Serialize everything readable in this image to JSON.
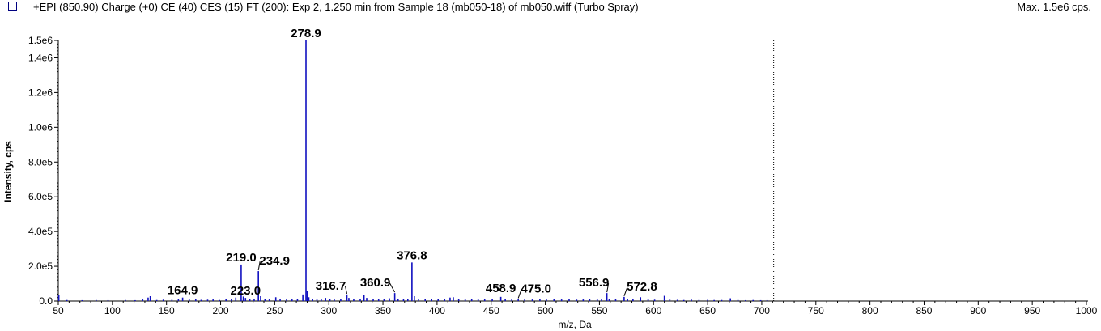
{
  "header": {
    "title": "+EPI (850.90) Charge (+0) CE (40) CES (15) FT (200): Exp 2, 1.250 min from Sample 18 (mb050-18) of mb050.wiff (Turbo Spray)",
    "max_label": "Max. 1.5e6 cps."
  },
  "colors": {
    "series": "#1010c0",
    "swatch": "#1a1aff",
    "axis": "#000000"
  },
  "chart_data": {
    "type": "bar",
    "xlabel": "m/z, Da",
    "ylabel": "Intensity, cps",
    "xlim": [
      50,
      1000
    ],
    "ylim": [
      0,
      1500000
    ],
    "x_ticks": [
      50,
      100,
      150,
      200,
      250,
      300,
      350,
      400,
      450,
      500,
      550,
      600,
      650,
      700,
      750,
      800,
      850,
      900,
      950,
      1000
    ],
    "x_tick_labels": [
      "50",
      "100",
      "150",
      "200",
      "250",
      "300",
      "350",
      "400",
      "450",
      "500",
      "550",
      "600",
      "650",
      "700",
      "750",
      "800",
      "850",
      "900",
      "950",
      "1000"
    ],
    "y_ticks": [
      0,
      200000,
      400000,
      600000,
      800000,
      1000000,
      1200000,
      1400000,
      1500000
    ],
    "y_tick_labels": [
      "0.0",
      "2.0e5",
      "4.0e5",
      "6.0e5",
      "8.0e5",
      "1.0e6",
      "1.2e6",
      "1.4e6",
      "1.5e6"
    ],
    "marker_line_x": 711,
    "peaks": [
      {
        "x": 50.5,
        "y": 35000
      },
      {
        "x": 58,
        "y": 6000
      },
      {
        "x": 72,
        "y": 5000
      },
      {
        "x": 85,
        "y": 6000
      },
      {
        "x": 96,
        "y": 5000
      },
      {
        "x": 112,
        "y": 6000
      },
      {
        "x": 121,
        "y": 5000
      },
      {
        "x": 128,
        "y": 9000
      },
      {
        "x": 133,
        "y": 20000
      },
      {
        "x": 135,
        "y": 28000
      },
      {
        "x": 141,
        "y": 6000
      },
      {
        "x": 147,
        "y": 8000
      },
      {
        "x": 155,
        "y": 7000
      },
      {
        "x": 161,
        "y": 14000
      },
      {
        "x": 164.9,
        "y": 20000
      },
      {
        "x": 171,
        "y": 9000
      },
      {
        "x": 177,
        "y": 12000
      },
      {
        "x": 182,
        "y": 7000
      },
      {
        "x": 188,
        "y": 8000
      },
      {
        "x": 193,
        "y": 9000
      },
      {
        "x": 199,
        "y": 6000
      },
      {
        "x": 205,
        "y": 10000
      },
      {
        "x": 210,
        "y": 14000
      },
      {
        "x": 214,
        "y": 20000
      },
      {
        "x": 219.0,
        "y": 210000
      },
      {
        "x": 221,
        "y": 26000
      },
      {
        "x": 223.0,
        "y": 18000
      },
      {
        "x": 227,
        "y": 12000
      },
      {
        "x": 231,
        "y": 14000
      },
      {
        "x": 234.9,
        "y": 172000
      },
      {
        "x": 237,
        "y": 28000
      },
      {
        "x": 241,
        "y": 10000
      },
      {
        "x": 245,
        "y": 9000
      },
      {
        "x": 251,
        "y": 22000
      },
      {
        "x": 255,
        "y": 10000
      },
      {
        "x": 261,
        "y": 12000
      },
      {
        "x": 266,
        "y": 9000
      },
      {
        "x": 271,
        "y": 10000
      },
      {
        "x": 276,
        "y": 38000
      },
      {
        "x": 278.9,
        "y": 1500000
      },
      {
        "x": 280,
        "y": 60000
      },
      {
        "x": 281.5,
        "y": 22000
      },
      {
        "x": 285,
        "y": 12000
      },
      {
        "x": 289,
        "y": 9000
      },
      {
        "x": 293,
        "y": 14000
      },
      {
        "x": 297,
        "y": 18000
      },
      {
        "x": 301,
        "y": 12000
      },
      {
        "x": 305,
        "y": 10000
      },
      {
        "x": 311,
        "y": 12000
      },
      {
        "x": 316.7,
        "y": 38000
      },
      {
        "x": 318.5,
        "y": 18000
      },
      {
        "x": 323,
        "y": 10000
      },
      {
        "x": 329,
        "y": 14000
      },
      {
        "x": 332.5,
        "y": 34000
      },
      {
        "x": 335,
        "y": 18000
      },
      {
        "x": 341,
        "y": 12000
      },
      {
        "x": 346,
        "y": 10000
      },
      {
        "x": 351,
        "y": 12000
      },
      {
        "x": 356,
        "y": 16000
      },
      {
        "x": 360.9,
        "y": 46000
      },
      {
        "x": 364,
        "y": 14000
      },
      {
        "x": 369,
        "y": 12000
      },
      {
        "x": 373,
        "y": 14000
      },
      {
        "x": 376.8,
        "y": 222000
      },
      {
        "x": 379,
        "y": 28000
      },
      {
        "x": 383,
        "y": 12000
      },
      {
        "x": 389,
        "y": 10000
      },
      {
        "x": 395,
        "y": 12000
      },
      {
        "x": 401,
        "y": 10000
      },
      {
        "x": 407,
        "y": 14000
      },
      {
        "x": 412,
        "y": 20000
      },
      {
        "x": 415,
        "y": 22000
      },
      {
        "x": 420,
        "y": 12000
      },
      {
        "x": 426,
        "y": 10000
      },
      {
        "x": 432,
        "y": 12000
      },
      {
        "x": 438,
        "y": 9000
      },
      {
        "x": 444,
        "y": 10000
      },
      {
        "x": 451,
        "y": 12000
      },
      {
        "x": 458.9,
        "y": 24000
      },
      {
        "x": 463,
        "y": 10000
      },
      {
        "x": 469,
        "y": 9000
      },
      {
        "x": 475.0,
        "y": 12000
      },
      {
        "x": 481,
        "y": 10000
      },
      {
        "x": 488,
        "y": 9000
      },
      {
        "x": 495,
        "y": 10000
      },
      {
        "x": 501,
        "y": 9000
      },
      {
        "x": 508,
        "y": 10000
      },
      {
        "x": 515,
        "y": 9000
      },
      {
        "x": 522,
        "y": 10000
      },
      {
        "x": 529,
        "y": 8000
      },
      {
        "x": 535,
        "y": 9000
      },
      {
        "x": 541,
        "y": 10000
      },
      {
        "x": 548,
        "y": 9000
      },
      {
        "x": 552,
        "y": 14000
      },
      {
        "x": 556.9,
        "y": 46000
      },
      {
        "x": 559,
        "y": 14000
      },
      {
        "x": 565,
        "y": 10000
      },
      {
        "x": 572.8,
        "y": 24000
      },
      {
        "x": 576,
        "y": 9000
      },
      {
        "x": 581,
        "y": 10000
      },
      {
        "x": 588,
        "y": 22000
      },
      {
        "x": 595,
        "y": 10000
      },
      {
        "x": 601,
        "y": 8000
      },
      {
        "x": 610,
        "y": 30000
      },
      {
        "x": 615,
        "y": 9000
      },
      {
        "x": 622,
        "y": 7000
      },
      {
        "x": 628,
        "y": 6000
      },
      {
        "x": 635,
        "y": 8000
      },
      {
        "x": 642,
        "y": 6000
      },
      {
        "x": 650,
        "y": 7000
      },
      {
        "x": 656,
        "y": 6000
      },
      {
        "x": 663,
        "y": 6000
      },
      {
        "x": 671,
        "y": 16000
      },
      {
        "x": 678,
        "y": 6000
      },
      {
        "x": 685,
        "y": 5000
      },
      {
        "x": 692,
        "y": 6000
      },
      {
        "x": 699,
        "y": 5000
      },
      {
        "x": 705,
        "y": 5000
      }
    ],
    "peak_labels": [
      {
        "x": 164.9,
        "y": 20000,
        "text": "164.9"
      },
      {
        "x": 219.0,
        "y": 210000,
        "text": "219.0"
      },
      {
        "x": 223.0,
        "y": 18000,
        "text": "223.0"
      },
      {
        "x": 234.9,
        "y": 172000,
        "text": "234.9"
      },
      {
        "x": 278.9,
        "y": 1500000,
        "text": "278.9"
      },
      {
        "x": 316.7,
        "y": 38000,
        "text": "316.7"
      },
      {
        "x": 360.9,
        "y": 46000,
        "text": "360.9"
      },
      {
        "x": 376.8,
        "y": 222000,
        "text": "376.8"
      },
      {
        "x": 458.9,
        "y": 24000,
        "text": "458.9"
      },
      {
        "x": 475.0,
        "y": 12000,
        "text": "475.0"
      },
      {
        "x": 556.9,
        "y": 46000,
        "text": "556.9"
      },
      {
        "x": 572.8,
        "y": 24000,
        "text": "572.8"
      }
    ]
  }
}
